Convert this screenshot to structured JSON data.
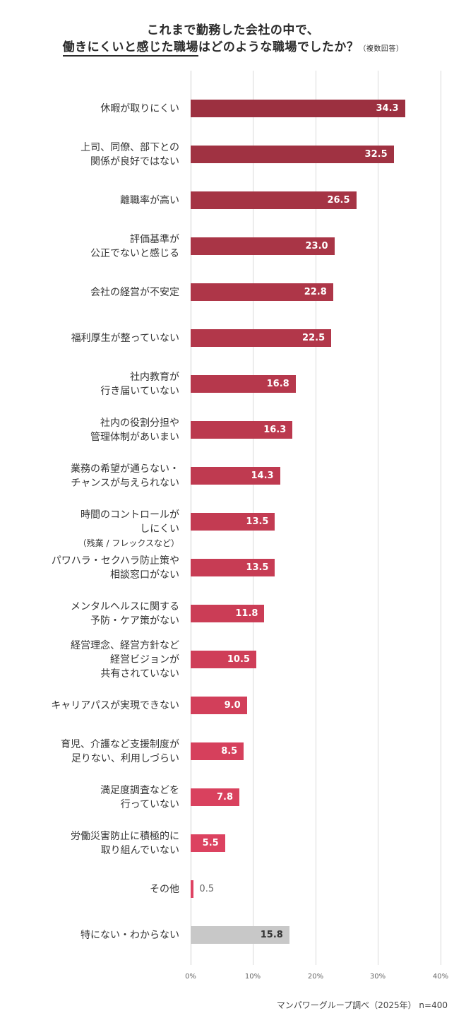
{
  "title": {
    "line1": "これまで勤務した会社の中で、",
    "line2_underlined": "働きにくいと感じた職場",
    "line2_rest": "はどのような職場でしたか？",
    "line2_note": "（複数回答）"
  },
  "axis": {
    "ticks": [
      "0%",
      "10%",
      "20%",
      "30%",
      "40%"
    ]
  },
  "source": "マンパワーグループ調べ（2025年） n=400",
  "chart_data": {
    "type": "bar",
    "orientation": "horizontal",
    "title": "これまで勤務した会社の中で、働きにくいと感じた職場はどのような職場でしたか？（複数回答）",
    "xlabel": "",
    "ylabel": "",
    "xlim": [
      0,
      40
    ],
    "unit": "%",
    "grid": true,
    "x_ticks": [
      "0%",
      "10%",
      "20%",
      "30%",
      "40%"
    ],
    "categories": [
      "休暇が取りにくい",
      "上司、同僚、部下との関係が良好ではない",
      "離職率が高い",
      "評価基準が公正でないと感じる",
      "会社の経営が不安定",
      "福利厚生が整っていない",
      "社内教育が行き届いていない",
      "社内の役割分担や管理体制があいまい",
      "業務の希望が通らない・チャンスが与えられない",
      "時間のコントロールがしにくい（残業 / フレックスなど）",
      "パワハラ・セクハラ防止策や相談窓口がない",
      "メンタルヘルスに関する予防・ケア策がない",
      "経営理念、経営方針など経営ビジョンが共有されていない",
      "キャリアパスが実現できない",
      "育児、介護など支援制度が足りない、利用しづらい",
      "満足度調査などを行っていない",
      "労働災害防止に積極的に取り組んでいない",
      "その他",
      "特にない・わからない"
    ],
    "values": [
      34.3,
      32.5,
      26.5,
      23.0,
      22.8,
      22.5,
      16.8,
      16.3,
      14.3,
      13.5,
      13.5,
      11.8,
      10.5,
      9.0,
      8.5,
      7.8,
      5.5,
      0.5,
      15.8
    ],
    "source": "マンパワーグループ調べ（2025年） n=400"
  },
  "rows": [
    {
      "lines": [
        "休暇が取りにくい"
      ],
      "value": "34.3",
      "num": 34.3,
      "color": "#9c3040"
    },
    {
      "lines": [
        "上司、同僚、部下との",
        "関係が良好ではない"
      ],
      "value": "32.5",
      "num": 32.5,
      "color": "#a03242"
    },
    {
      "lines": [
        "離職率が高い"
      ],
      "value": "26.5",
      "num": 26.5,
      "color": "#a53444"
    },
    {
      "lines": [
        "評価基準が",
        "公正でないと感じる"
      ],
      "value": "23.0",
      "num": 23.0,
      "color": "#a93546"
    },
    {
      "lines": [
        "会社の経営が不安定"
      ],
      "value": "22.8",
      "num": 22.8,
      "color": "#ae3648"
    },
    {
      "lines": [
        "福利厚生が整っていない"
      ],
      "value": "22.5",
      "num": 22.5,
      "color": "#b2374a"
    },
    {
      "lines": [
        "社内教育が",
        "行き届いていない"
      ],
      "value": "16.8",
      "num": 16.8,
      "color": "#b6384c"
    },
    {
      "lines": [
        "社内の役割分担や",
        "管理体制があいまい"
      ],
      "value": "16.3",
      "num": 16.3,
      "color": "#bb394e"
    },
    {
      "lines": [
        "業務の希望が通らない・",
        "チャンスが与えられない"
      ],
      "value": "14.3",
      "num": 14.3,
      "color": "#bf3a50"
    },
    {
      "lines": [
        "時間のコントロールが",
        "しにくい"
      ],
      "sub": "（残業 / フレックスなど）",
      "value": "13.5",
      "num": 13.5,
      "color": "#c33b52"
    },
    {
      "lines": [
        "パワハラ・セクハラ防止策や",
        "相談窓口がない"
      ],
      "value": "13.5",
      "num": 13.5,
      "color": "#c73c54"
    },
    {
      "lines": [
        "メンタルヘルスに関する",
        "予防・ケア策がない"
      ],
      "value": "11.8",
      "num": 11.8,
      "color": "#cb3d56"
    },
    {
      "lines": [
        "経営理念、経営方針など",
        "経営ビジョンが",
        "共有されていない"
      ],
      "value": "10.5",
      "num": 10.5,
      "color": "#cf3e58"
    },
    {
      "lines": [
        "キャリアパスが実現できない"
      ],
      "value": "9.0",
      "num": 9.0,
      "color": "#d23f5a"
    },
    {
      "lines": [
        "育児、介護など支援制度が",
        "足りない、利用しづらい"
      ],
      "value": "8.5",
      "num": 8.5,
      "color": "#d6405c"
    },
    {
      "lines": [
        "満足度調査などを",
        "行っていない"
      ],
      "value": "7.8",
      "num": 7.8,
      "color": "#d9415e"
    },
    {
      "lines": [
        "労働災害防止に積極的に",
        "取り組んでいない"
      ],
      "value": "5.5",
      "num": 5.5,
      "color": "#dc4260"
    },
    {
      "lines": [
        "その他"
      ],
      "value": "0.5",
      "num": 0.5,
      "color": "#de4262",
      "value_outside": true
    },
    {
      "lines": [
        "特にない・わからない"
      ],
      "value": "15.8",
      "num": 15.8,
      "color": "#c8c8c8",
      "value_dark": true
    }
  ]
}
